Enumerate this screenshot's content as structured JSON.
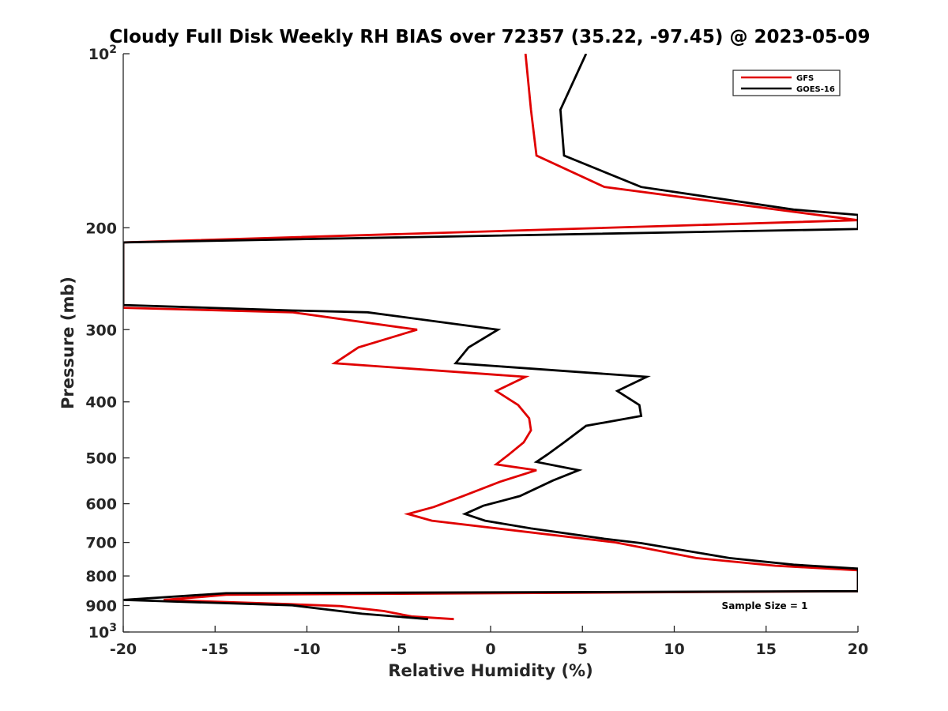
{
  "chart_data": {
    "type": "line",
    "title": "Cloudy Full Disk Weekly RH BIAS over 72357 (35.22, -97.45) @ 2023-05-09",
    "xlabel": "Relative Humidity (%)",
    "ylabel": "Pressure (mb)",
    "xlim": [
      -20,
      20
    ],
    "ylim": [
      100,
      1000
    ],
    "y_scale": "log",
    "y_reversed": true,
    "grid": false,
    "legend_position": "top-right",
    "annotation": "Sample Size = 1",
    "x_ticks": [
      {
        "value": -20,
        "label": "-20"
      },
      {
        "value": -15,
        "label": "-15"
      },
      {
        "value": -10,
        "label": "-10"
      },
      {
        "value": -5,
        "label": "-5"
      },
      {
        "value": 0,
        "label": "0"
      },
      {
        "value": 5,
        "label": "5"
      },
      {
        "value": 10,
        "label": "10"
      },
      {
        "value": 15,
        "label": "15"
      },
      {
        "value": 20,
        "label": "20"
      }
    ],
    "y_ticks": [
      {
        "value": 100,
        "base": "10",
        "exp": "2"
      },
      {
        "value": 200,
        "base": "200",
        "exp": ""
      },
      {
        "value": 300,
        "base": "300",
        "exp": ""
      },
      {
        "value": 400,
        "base": "400",
        "exp": ""
      },
      {
        "value": 500,
        "base": "500",
        "exp": ""
      },
      {
        "value": 600,
        "base": "600",
        "exp": ""
      },
      {
        "value": 700,
        "base": "700",
        "exp": ""
      },
      {
        "value": 800,
        "base": "800",
        "exp": ""
      },
      {
        "value": 900,
        "base": "900",
        "exp": ""
      },
      {
        "value": 1000,
        "base": "10",
        "exp": "3"
      }
    ],
    "series": [
      {
        "name": "GFS",
        "color": "#e00000",
        "points": [
          [
            1.9,
            100
          ],
          [
            2.2,
            125
          ],
          [
            2.5,
            150
          ],
          [
            6.2,
            170
          ],
          [
            20,
            194
          ],
          [
            -20,
            212
          ],
          [
            -20,
            275
          ],
          [
            -10.8,
            280
          ],
          [
            -4.0,
            300
          ],
          [
            -7.2,
            322
          ],
          [
            -8.5,
            343
          ],
          [
            1.9,
            362
          ],
          [
            0.3,
            383
          ],
          [
            1.5,
            405
          ],
          [
            2.1,
            427
          ],
          [
            2.2,
            448
          ],
          [
            1.8,
            470
          ],
          [
            1.0,
            493
          ],
          [
            0.3,
            513
          ],
          [
            2.5,
            525
          ],
          [
            0.5,
            550
          ],
          [
            -1.5,
            582
          ],
          [
            -3.1,
            608
          ],
          [
            -4.5,
            625
          ],
          [
            -3.2,
            642
          ],
          [
            6.8,
            700
          ],
          [
            11.2,
            745
          ],
          [
            15.5,
            768
          ],
          [
            20,
            782
          ],
          [
            20,
            850
          ],
          [
            -14.4,
            862
          ],
          [
            -15.8,
            870
          ],
          [
            -17.8,
            880
          ],
          [
            -11.0,
            895
          ],
          [
            -8.2,
            902
          ],
          [
            -5.8,
            920
          ],
          [
            -4.3,
            940
          ],
          [
            -2.0,
            950
          ]
        ]
      },
      {
        "name": "GOES-16",
        "color": "#000000",
        "points": [
          [
            5.2,
            100
          ],
          [
            3.8,
            125
          ],
          [
            4.0,
            150
          ],
          [
            8.2,
            170
          ],
          [
            16.5,
            186
          ],
          [
            20,
            190
          ],
          [
            20,
            201
          ],
          [
            -20,
            212
          ],
          [
            -20,
            272
          ],
          [
            -10.8,
            278
          ],
          [
            -6.7,
            280
          ],
          [
            0.4,
            300
          ],
          [
            -1.2,
            322
          ],
          [
            -1.9,
            343
          ],
          [
            8.5,
            362
          ],
          [
            6.9,
            383
          ],
          [
            8.1,
            405
          ],
          [
            8.2,
            423
          ],
          [
            5.2,
            440
          ],
          [
            4.0,
            470
          ],
          [
            3.1,
            493
          ],
          [
            2.5,
            508
          ],
          [
            4.8,
            525
          ],
          [
            3.4,
            547
          ],
          [
            1.6,
            582
          ],
          [
            -0.4,
            605
          ],
          [
            -1.4,
            625
          ],
          [
            -0.3,
            642
          ],
          [
            2.2,
            662
          ],
          [
            6.2,
            690
          ],
          [
            8.2,
            702
          ],
          [
            13.0,
            745
          ],
          [
            16.5,
            765
          ],
          [
            20,
            777
          ],
          [
            20,
            850
          ],
          [
            -14.4,
            857
          ],
          [
            -20,
            880
          ],
          [
            -10.8,
            899
          ],
          [
            -7.0,
            930
          ],
          [
            -3.4,
            950
          ]
        ]
      }
    ]
  }
}
